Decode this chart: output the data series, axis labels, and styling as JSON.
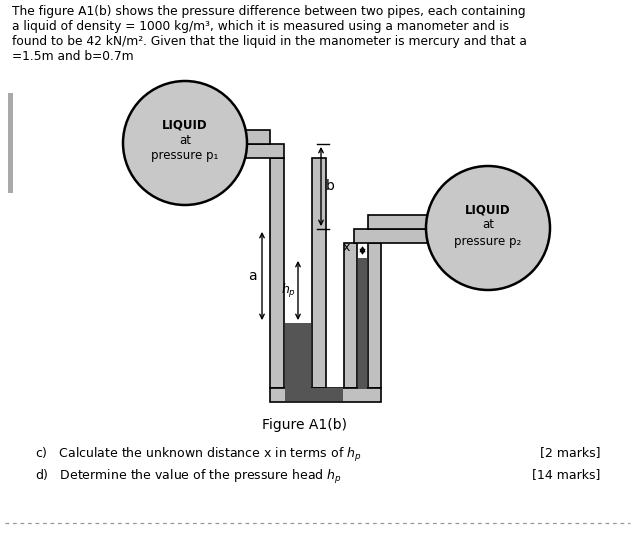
{
  "bg_color": "#ffffff",
  "text_color": "#000000",
  "header_text": "The figure A1(b) shows the pressure difference between two pipes, each containing\na liquid of density = 1000 kg/m³, which it is measured using a manometer and is\nfound to be 42 kN/m². Given that the liquid in the manometer is mercury and that a\n=1.5m and b=0.7m",
  "figure_label": "Figure A1(b)",
  "question_c": "c)   Calculate the unknown distance x in terms of $h_p$",
  "question_d": "d)   Determine the value of the pressure head $h_p$",
  "marks_c": "[2 marks]",
  "marks_d": "[14 marks]",
  "circle_color": "#c8c8c8",
  "pipe_color": "#c0c0c0",
  "mercury_color": "#555555",
  "pipe_outline": "#000000",
  "pipe_lw": 1.2,
  "pipe_wall": 14
}
